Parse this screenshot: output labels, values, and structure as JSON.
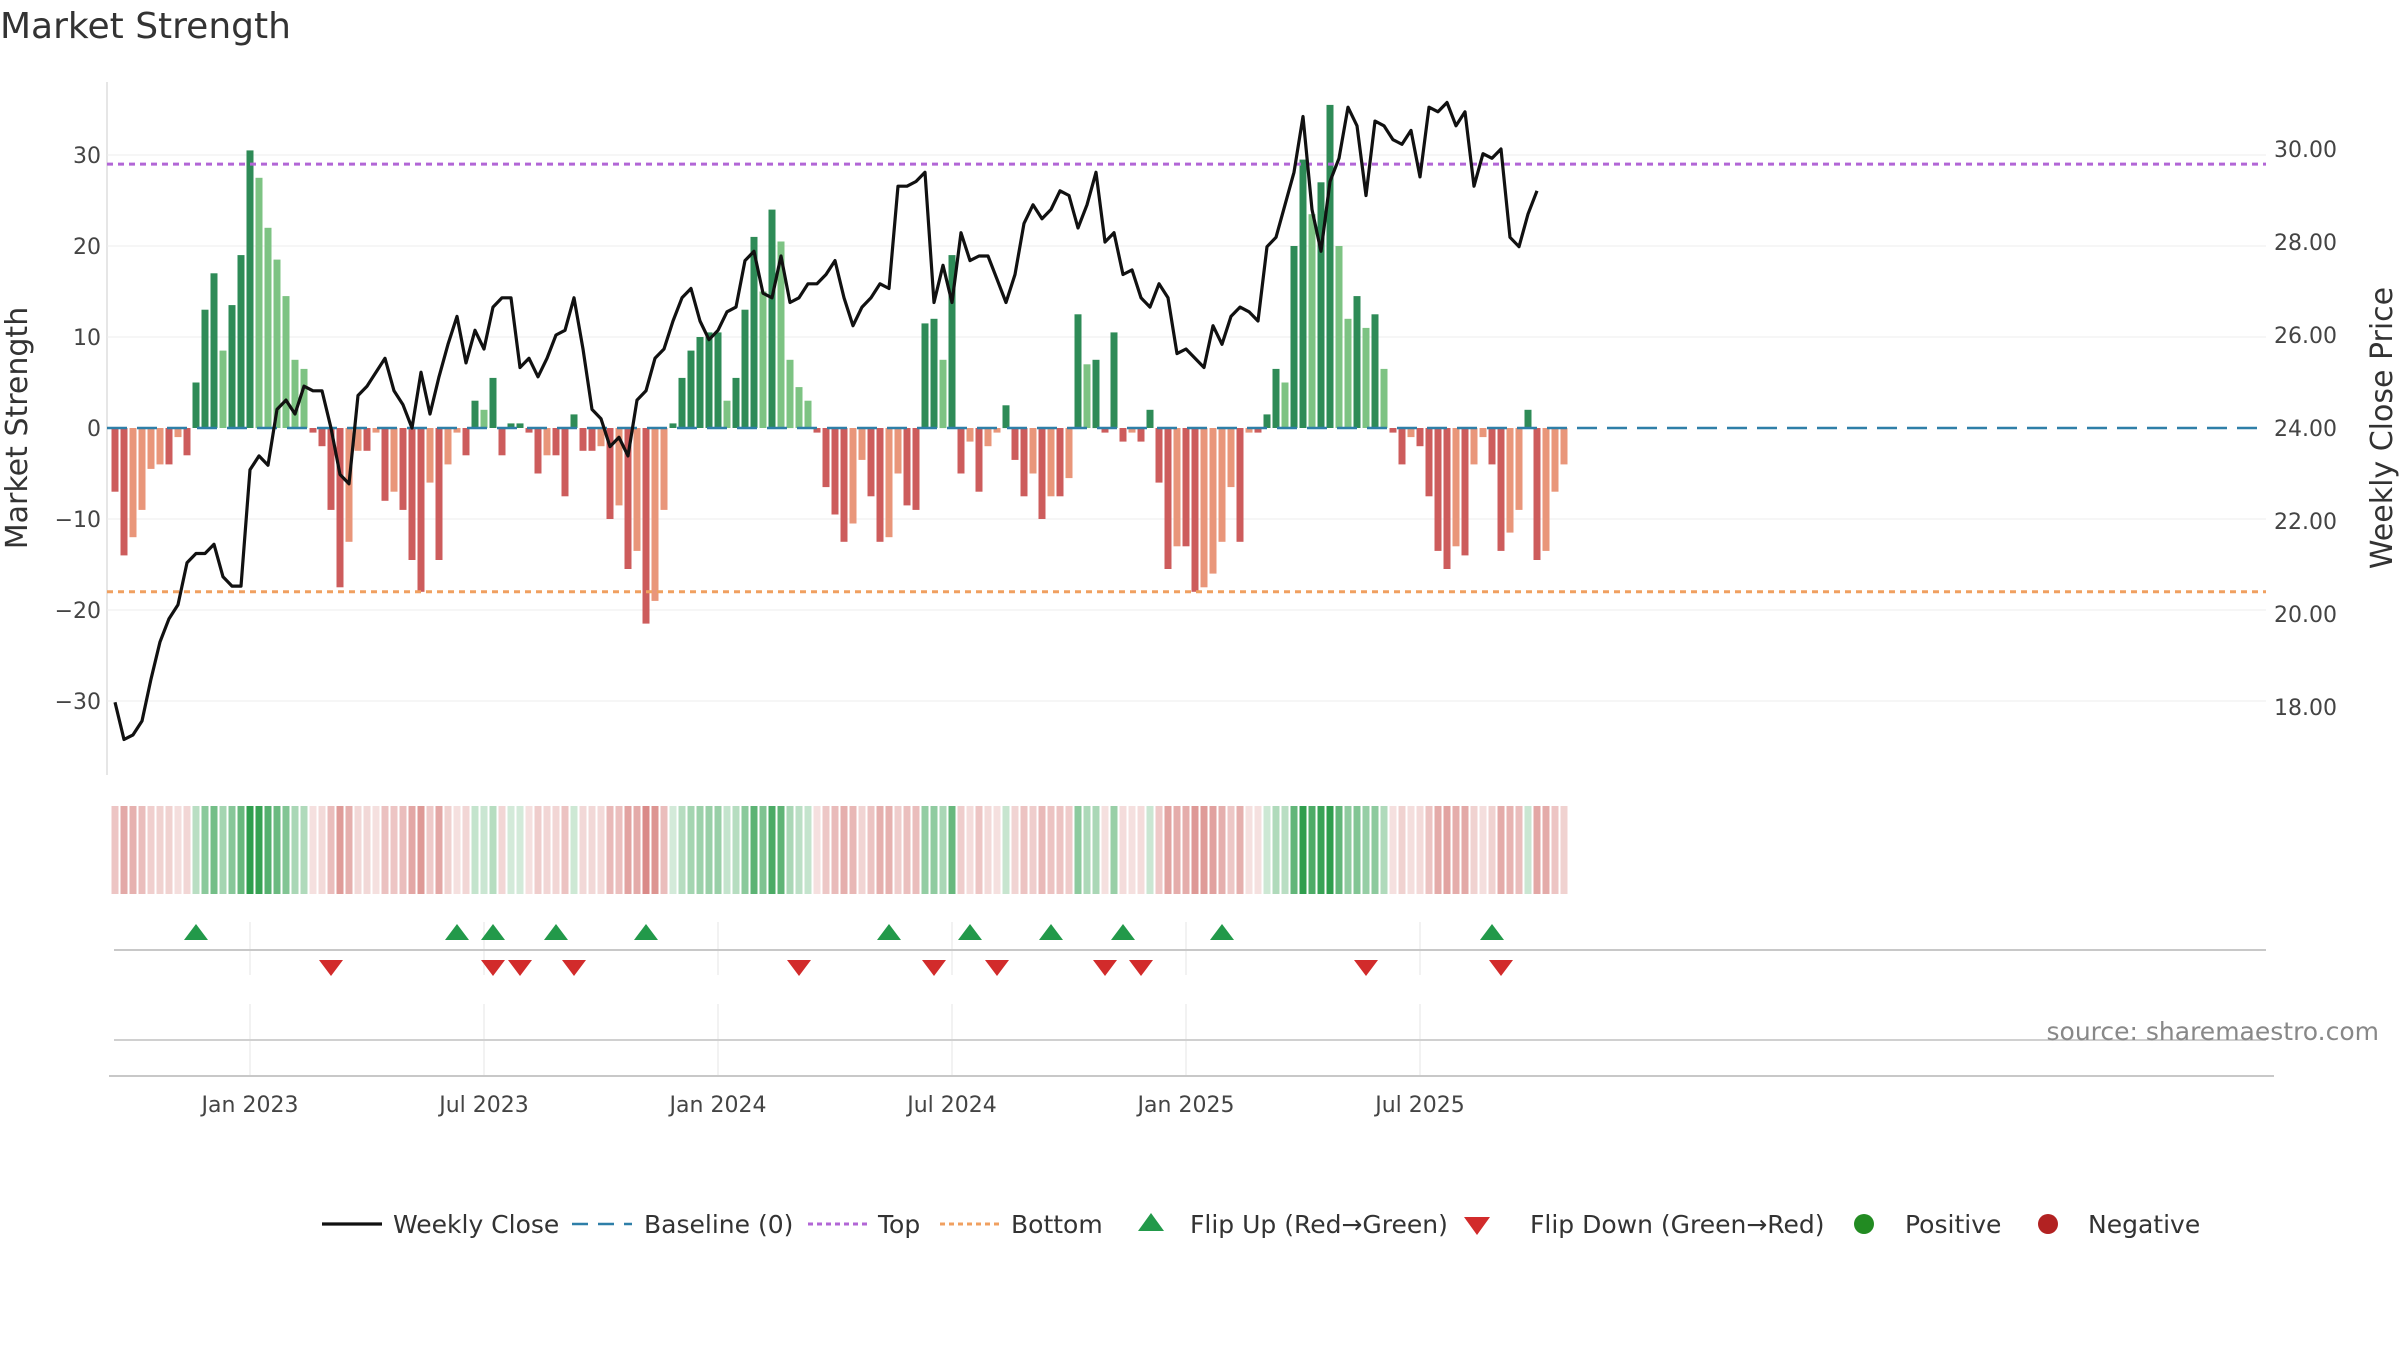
{
  "chart_data": {
    "type": "bar",
    "title": "Market Strength",
    "ylabel_left": "Market Strength",
    "ylabel_right": "Weekly Close Price",
    "source": "source: sharemaestro.com",
    "left_ticks": [
      "30",
      "20",
      "10",
      "0",
      "−10",
      "−20",
      "−30"
    ],
    "left_tick_values": [
      30,
      20,
      10,
      0,
      -10,
      -20,
      -30
    ],
    "right_ticks": [
      "30.00",
      "28.00",
      "26.00",
      "24.00",
      "22.00",
      "20.00",
      "18.00"
    ],
    "right_tick_values": [
      30,
      28,
      26,
      24,
      22,
      20,
      18
    ],
    "ylim_left": [
      -38,
      38
    ],
    "ylim_right": [
      16.2,
      31.8
    ],
    "top_level": 29,
    "bottom_level": -18,
    "x_ticks": [
      "Jan 2023",
      "Jul 2023",
      "Jan 2024",
      "Jul 2024",
      "Jan 2025",
      "Jul 2025"
    ],
    "x_tick_weeks": [
      15,
      41,
      67,
      93,
      119,
      145
    ],
    "strength": [
      -7,
      -14,
      -12,
      -9,
      -4.5,
      -4,
      -4,
      -1,
      -3,
      5,
      13,
      17,
      8.5,
      13.5,
      19,
      30.5,
      27.5,
      22,
      18.5,
      14.5,
      7.5,
      6.5,
      -0.5,
      -2,
      -9,
      -17.5,
      -12.5,
      -2.5,
      -2.5,
      -0.5,
      -8,
      -7,
      -9,
      -14.5,
      -18,
      -6,
      -14.5,
      -4,
      -0.5,
      -3,
      3,
      2,
      5.5,
      -3,
      0.5,
      0.5,
      -0.5,
      -5,
      -3,
      -3,
      -7.5,
      1.5,
      -2.5,
      -2.5,
      -2,
      -10,
      -8.5,
      -15.5,
      -13.5,
      -21.5,
      -19,
      -9,
      0.5,
      5.5,
      8.5,
      10,
      10.5,
      10.5,
      3,
      5.5,
      13,
      21,
      15,
      24,
      20.5,
      7.5,
      4.5,
      3,
      -0.5,
      -6.5,
      -9.5,
      -12.5,
      -10.5,
      -3.5,
      -7.5,
      -12.5,
      -12,
      -5,
      -8.5,
      -9,
      11.5,
      12,
      7.5,
      19,
      -5,
      -1.5,
      -7,
      -2,
      -0.5,
      2.5,
      -3.5,
      -7.5,
      -5,
      -10,
      -7.5,
      -7.5,
      -5.5,
      12.5,
      7,
      7.5,
      -0.5,
      10.5,
      -1.5,
      -0.5,
      -1.5,
      2,
      -6,
      -15.5,
      -13,
      -13,
      -18,
      -17.5,
      -16,
      -12.5,
      -6.5,
      -12.5,
      -0.5,
      -0.5,
      1.5,
      6.5,
      5,
      20,
      29.5,
      23.5,
      27,
      35.5,
      20,
      12,
      14.5,
      11,
      12.5,
      6.5,
      -0.5,
      -4,
      -1,
      -2,
      -7.5,
      -13.5,
      -15.5,
      -13,
      -14,
      -4,
      -1,
      -4,
      -13.5,
      -11.5,
      -9,
      2,
      -14.5,
      -13.5,
      -7,
      -4
    ],
    "weekly_close": [
      18.1,
      17.3,
      17.4,
      17.7,
      18.6,
      19.4,
      19.9,
      20.2,
      21.1,
      21.3,
      21.3,
      21.5,
      20.8,
      20.6,
      20.6,
      23.1,
      23.4,
      23.2,
      24.4,
      24.6,
      24.3,
      24.9,
      24.8,
      24.8,
      24.0,
      23.0,
      22.8,
      24.7,
      24.9,
      25.2,
      25.5,
      24.8,
      24.5,
      24.0,
      25.2,
      24.3,
      25.1,
      25.8,
      26.4,
      25.4,
      26.1,
      25.7,
      26.6,
      26.8,
      26.8,
      25.3,
      25.5,
      25.1,
      25.5,
      26.0,
      26.1,
      26.8,
      25.7,
      24.4,
      24.2,
      23.6,
      23.8,
      23.4,
      24.6,
      24.8,
      25.5,
      25.7,
      26.3,
      26.8,
      27.0,
      26.3,
      25.9,
      26.1,
      26.5,
      26.6,
      27.6,
      27.8,
      26.9,
      26.8,
      27.7,
      26.7,
      26.8,
      27.1,
      27.1,
      27.3,
      27.6,
      26.8,
      26.2,
      26.6,
      26.8,
      27.1,
      27.0,
      29.2,
      29.2,
      29.3,
      29.5,
      26.7,
      27.5,
      26.7,
      28.2,
      27.6,
      27.7,
      27.7,
      27.2,
      26.7,
      27.3,
      28.4,
      28.8,
      28.5,
      28.7,
      29.1,
      29.0,
      28.3,
      28.8,
      29.5,
      28.0,
      28.2,
      27.3,
      27.4,
      26.8,
      26.6,
      27.1,
      26.8,
      25.6,
      25.7,
      25.5,
      25.3,
      26.2,
      25.8,
      26.4,
      26.6,
      26.5,
      26.3,
      27.9,
      28.1,
      28.8,
      29.5,
      30.7,
      28.7,
      27.8,
      29.3,
      29.8,
      30.9,
      30.5,
      29.0,
      30.6,
      30.5,
      30.2,
      30.1,
      30.4,
      29.4,
      30.9,
      30.8,
      31.0,
      30.5,
      30.8,
      29.2,
      29.9,
      29.8,
      30.0,
      28.1,
      27.9,
      28.6,
      29.1
    ],
    "flip_up_weeks": [
      9,
      38,
      42,
      49,
      59,
      86,
      95,
      104,
      112,
      123,
      153
    ],
    "flip_down_weeks": [
      24,
      42,
      45,
      51,
      76,
      91,
      98,
      110,
      114,
      139,
      154
    ],
    "legend": [
      "Weekly Close",
      "Baseline (0)",
      "Top",
      "Bottom",
      "Flip Up (Red→Green)",
      "Flip Down (Green→Red)",
      "Positive",
      "Negative"
    ],
    "colors": {
      "strong_up": "#2e8b57",
      "light_up": "#7dc383",
      "strong_down": "#cd5c5c",
      "light_down": "#e9967a",
      "line": "#111111",
      "baseline": "#2e7fa8",
      "top": "#b266d6",
      "bottom": "#f0a060",
      "flip_up": "#22994a",
      "flip_down": "#d22b2b",
      "positive": "#228b22",
      "negative": "#b22222"
    }
  }
}
